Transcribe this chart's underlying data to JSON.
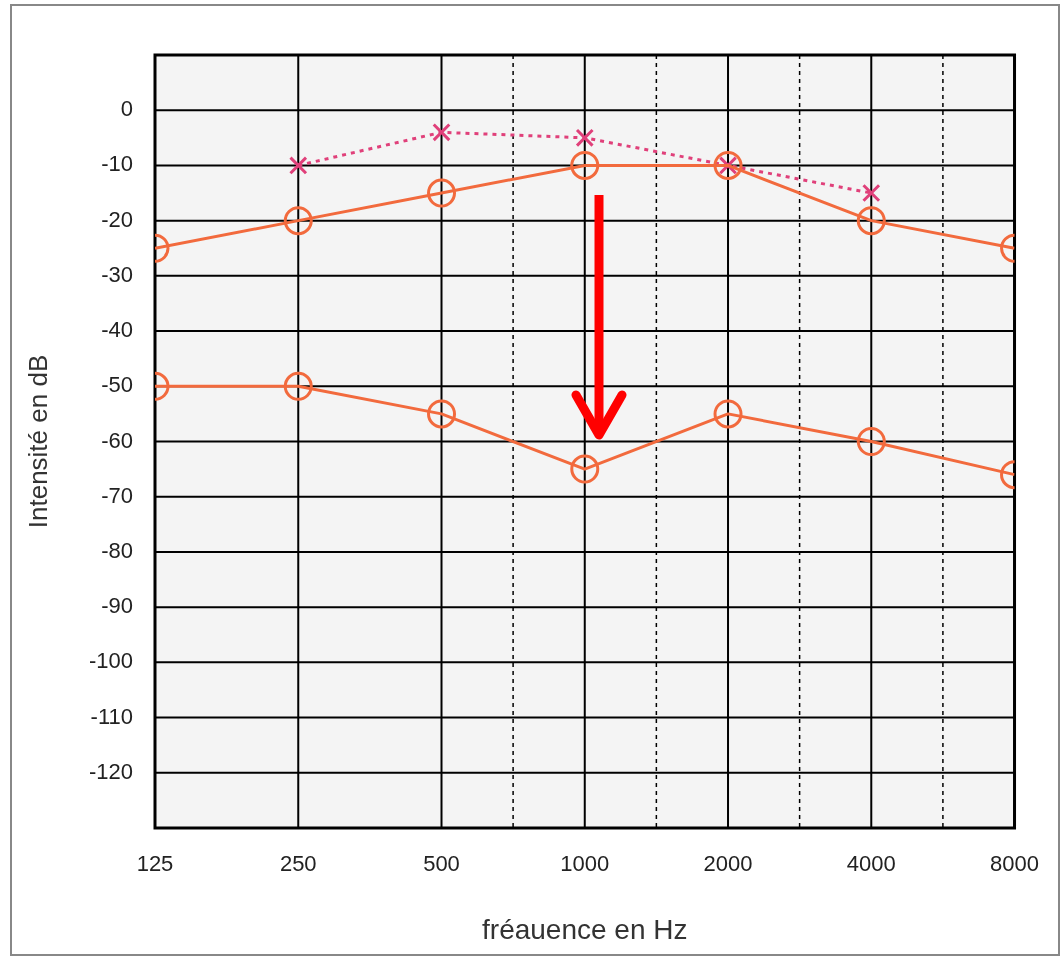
{
  "chart_data": {
    "type": "line",
    "xlabel": "fréauence en Hz",
    "ylabel": "Intensité en dB",
    "log": "x",
    "xlim": [
      125,
      8000
    ],
    "ylim": [
      -130,
      10
    ],
    "xticks": [
      125,
      250,
      500,
      {
        "value": 707,
        "label": null
      },
      1000,
      {
        "value": 1414,
        "label": null
      },
      2000,
      {
        "value": 2828,
        "label": null
      },
      4000,
      {
        "value": 5657,
        "label": null
      },
      8000
    ],
    "yticks": [
      0,
      -10,
      -20,
      -30,
      -40,
      -50,
      -60,
      -70,
      -80,
      -90,
      -100,
      -110,
      -120
    ],
    "grid": true,
    "legend": false,
    "x": [
      125,
      250,
      500,
      1000,
      2000,
      4000,
      8000
    ],
    "series": [
      {
        "color": "#f26a3d",
        "marker": "circle",
        "line_style": "solid",
        "values": [
          -25,
          -20,
          -15,
          -10,
          -10,
          -20,
          -25
        ]
      },
      {
        "color": "#f26a3d",
        "marker": "circle",
        "line_style": "solid",
        "values": [
          -50,
          -50,
          -55,
          -65,
          -55,
          -60,
          -66
        ]
      },
      {
        "color": "#e0407a",
        "marker": "cross",
        "line_style": "dotted",
        "values": [
          null,
          -10,
          -4,
          -5,
          -10,
          -15,
          null
        ]
      }
    ]
  }
}
